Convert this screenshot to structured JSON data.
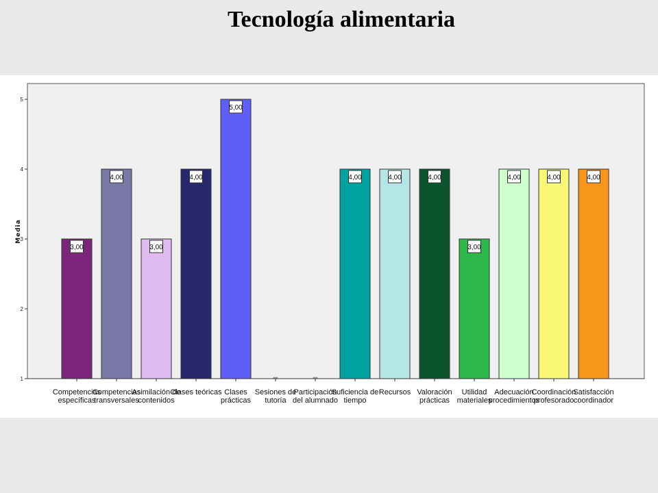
{
  "slide": {
    "title": "Tecnología alimentaria"
  },
  "chart_data": {
    "type": "bar",
    "title": "",
    "xlabel": "",
    "ylabel": "Media",
    "ylim": [
      1,
      5
    ],
    "yticks": [
      "1",
      "2",
      "3",
      "4",
      "5"
    ],
    "grid": false,
    "categories": [
      [
        "Competencias",
        "específicas"
      ],
      [
        "Competencias",
        "transversales"
      ],
      [
        "Asimilación de",
        "contenidos"
      ],
      [
        "Clases teóricas"
      ],
      [
        "Clases",
        "prácticas"
      ],
      [
        "Sesiones de",
        "tutoría"
      ],
      [
        "Participación",
        "del alumnado"
      ],
      [
        "Suficiencia de",
        "tiempo"
      ],
      [
        "Recursos"
      ],
      [
        "Valoración",
        "prácticas"
      ],
      [
        "Utilidad",
        "materiales"
      ],
      [
        "Adecuación",
        "procedimientos"
      ],
      [
        "Coordinación",
        "profesorado"
      ],
      [
        "Satisfacción",
        "coordinador"
      ]
    ],
    "values": [
      3,
      4,
      3,
      4,
      5,
      1,
      1,
      4,
      4,
      4,
      3,
      4,
      4,
      4
    ],
    "data_labels": [
      "3,00",
      "4,00",
      "3,00",
      "4,00",
      "5,00",
      null,
      null,
      "4,00",
      "4,00",
      "4,00",
      "3,00",
      "4,00",
      "4,00",
      "4,00"
    ],
    "colors": [
      "#7b267a",
      "#7a78a6",
      "#dfbbf0",
      "#28286e",
      "#5f5ff5",
      "#cccccc",
      "#cccccc",
      "#01a3a0",
      "#b4e6e8",
      "#0b552e",
      "#2fb84a",
      "#ccffcc",
      "#f8f876",
      "#f8961c"
    ],
    "plot_background": "#f0f0f0"
  }
}
